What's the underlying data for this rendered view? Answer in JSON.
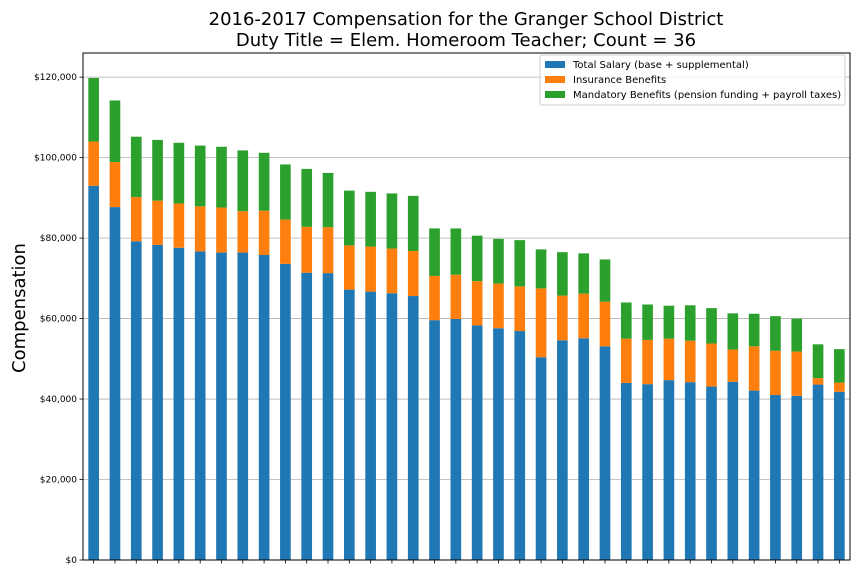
{
  "chart_data": {
    "type": "bar",
    "stacked": true,
    "title": [
      "2016-2017 Compensation for the Granger School District",
      "Duty Title = Elem. Homeroom Teacher; Count = 36"
    ],
    "xlabel": "",
    "ylabel": "Compensation",
    "ylim": [
      0,
      126000
    ],
    "yticks": [
      0,
      20000,
      40000,
      60000,
      80000,
      100000,
      120000
    ],
    "ytick_labels": [
      "$0",
      "$20,000",
      "$40,000",
      "$60,000",
      "$80,000",
      "$100,000",
      "$120,000"
    ],
    "grid": "horizontal",
    "legend_position": "top-right",
    "categories_count": 36,
    "series": [
      {
        "name": "Total Salary (base + supplemental)",
        "color": "#1f77b4",
        "values": [
          93000,
          87700,
          79200,
          78300,
          77600,
          76700,
          76400,
          76400,
          75800,
          73600,
          71400,
          71300,
          67200,
          66700,
          66300,
          65600,
          59600,
          59900,
          58300,
          57600,
          56900,
          50400,
          54600,
          55100,
          53100,
          44000,
          43700,
          44700,
          44200,
          43100,
          44300,
          42100,
          41000,
          40800,
          43600,
          41800
        ]
      },
      {
        "name": "Insurance Benefits",
        "color": "#ff7f0e",
        "values": [
          11000,
          11200,
          11000,
          11000,
          11000,
          11200,
          11200,
          10300,
          11000,
          11000,
          11400,
          11400,
          11000,
          11200,
          11100,
          11200,
          11000,
          11000,
          11000,
          11100,
          11100,
          17100,
          11100,
          11100,
          11100,
          11000,
          11000,
          10300,
          10300,
          10700,
          8000,
          11000,
          11000,
          11000,
          1600,
          2300
        ]
      },
      {
        "name": "Mandatory Benefits (pension funding + payroll taxes)",
        "color": "#2ca02c",
        "values": [
          15800,
          15300,
          15000,
          15100,
          15100,
          15100,
          15100,
          15100,
          14400,
          13700,
          14400,
          13500,
          13600,
          13600,
          13700,
          13700,
          11800,
          11500,
          11300,
          11100,
          11500,
          9700,
          10800,
          10000,
          10500,
          9000,
          8800,
          8200,
          8800,
          8800,
          9000,
          8100,
          8600,
          8200,
          8400,
          8300
        ]
      }
    ]
  }
}
